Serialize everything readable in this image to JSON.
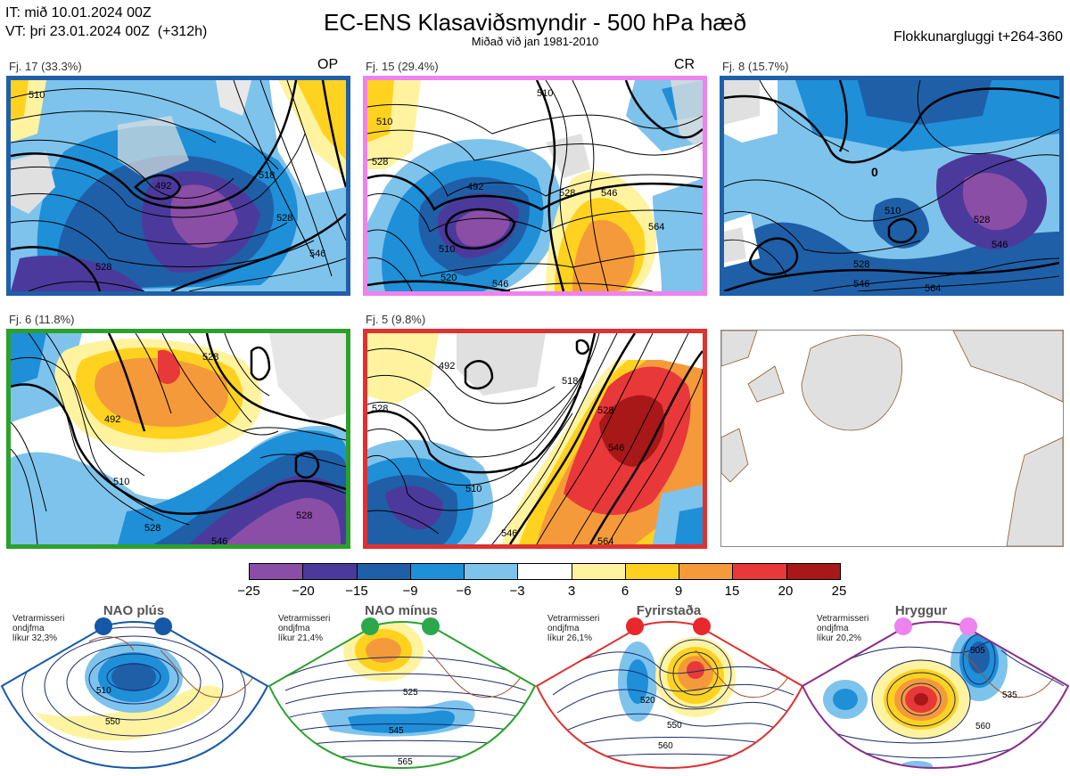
{
  "header": {
    "it_line": "IT: mið 10.01.2024 00Z",
    "vt_line": "VT: þri 23.01.2024 00Z  (+312h)",
    "title": "EC-ENS Klasaviðsmyndir - 500 hPa hæð",
    "subtitle": "Miðað við jan 1981-2010",
    "window": "Flokkunargluggi t+264-360"
  },
  "panels": [
    {
      "label": "Fj. 17 (33.3%)",
      "tag": "OP",
      "border": "#1f5fa8"
    },
    {
      "label": "Fj. 15 (29.4%)",
      "tag": "CR",
      "border": "#ee82ee"
    },
    {
      "label": "Fj. 8 (15.7%)",
      "tag": "",
      "border": "#1f5fa8"
    },
    {
      "label": "Fj. 6 (11.8%)",
      "tag": "",
      "border": "#2ca02c"
    },
    {
      "label": "Fj. 5 (9.8%)",
      "tag": "",
      "border": "#e03030"
    }
  ],
  "panel_contours": [
    [
      "510",
      "492",
      "518",
      "528",
      "528",
      "546"
    ],
    [
      "510",
      "510",
      "528",
      "492",
      "510",
      "546",
      "564",
      "520",
      "528",
      "546"
    ],
    [
      "528",
      "510",
      "528",
      "546",
      "546",
      "564",
      "0"
    ],
    [
      "492",
      "510",
      "528",
      "528",
      "528",
      "546"
    ],
    [
      "492",
      "528",
      "518",
      "528",
      "546",
      "546",
      "564",
      "510"
    ]
  ],
  "colorbar": {
    "ticks": [
      "−25",
      "−20",
      "−15",
      "−9",
      "−6",
      "−3",
      "3",
      "6",
      "9",
      "15",
      "20",
      "25"
    ],
    "colors": [
      "#8b4ea6",
      "#4b3a9c",
      "#1f5fa8",
      "#1f8fd8",
      "#7ec3ec",
      "#ffffff",
      "#fff3a0",
      "#ffd21f",
      "#f59a3a",
      "#e8383a",
      "#a81818"
    ]
  },
  "regimes": [
    {
      "name": "NAO plús",
      "note": [
        "Vetrarmisseri",
        "ondjfma",
        "líkur 32,3%"
      ],
      "contours": [
        "510",
        "550"
      ],
      "color": "#1f5fa8",
      "dot": "#1558a8"
    },
    {
      "name": "NAO mínus",
      "note": [
        "Vetrarmisseri",
        "ondjfma",
        "líkur 21,4%"
      ],
      "contours": [
        "525",
        "545",
        "565"
      ],
      "color": "#2ca02c",
      "dot": "#2aa84a"
    },
    {
      "name": "Fyrirstaða",
      "note": [
        "Vetrarmisseri",
        "ondjfma",
        "líkur 26,1%"
      ],
      "contours": [
        "520",
        "550",
        "560"
      ],
      "color": "#e03030",
      "dot": "#e8282a"
    },
    {
      "name": "Hryggur",
      "note": [
        "Vetrarmisseri",
        "ondjfma",
        "líkur 20,2%"
      ],
      "contours": [
        "505",
        "535",
        "560"
      ],
      "color": "#8b2c8b",
      "dot": "#ee82ee"
    }
  ]
}
